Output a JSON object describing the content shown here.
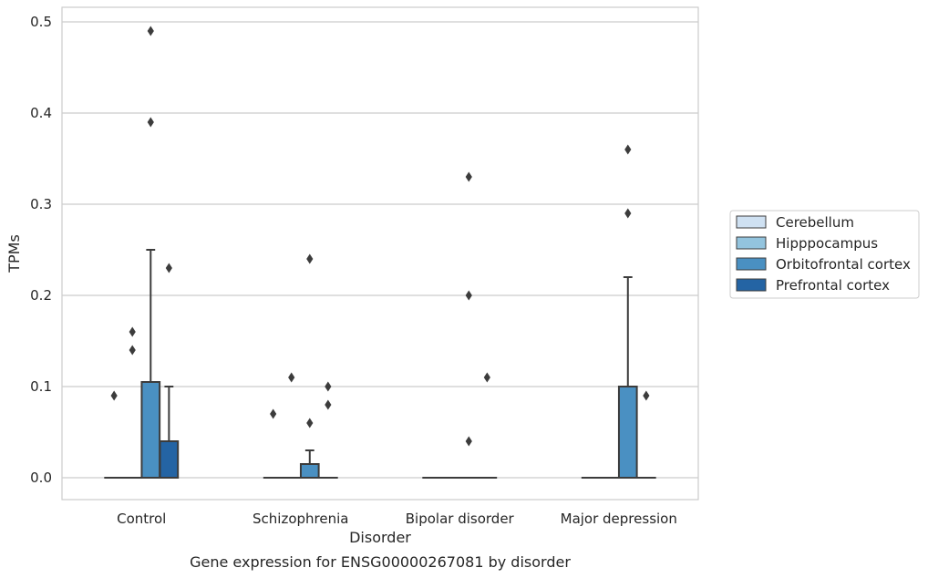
{
  "chart_data": {
    "type": "box",
    "xlabel": "Disorder",
    "ylabel": "TPMs",
    "caption": "Gene expression for ENSG00000267081 by disorder",
    "ylim": [
      -0.024,
      0.516
    ],
    "yticks": [
      0.0,
      0.1,
      0.2,
      0.3,
      0.4,
      0.5
    ],
    "ytick_labels": [
      "0.0",
      "0.1",
      "0.2",
      "0.3",
      "0.4",
      "0.5"
    ],
    "categories": [
      "Control",
      "Schizophrenia",
      "Bipolar disorder",
      "Major depression"
    ],
    "grid": true,
    "legend_position": "right",
    "series": [
      {
        "name": "Cerebellum",
        "color": "#cfe1f2",
        "boxes": [
          {
            "q1": 0,
            "median": 0,
            "q3": 0,
            "whislo": 0,
            "whishi": 0,
            "fliers": [
              0.09
            ]
          },
          {
            "q1": 0,
            "median": 0,
            "q3": 0,
            "whislo": 0,
            "whishi": 0,
            "fliers": [
              0.07
            ]
          },
          {
            "q1": 0,
            "median": 0,
            "q3": 0,
            "whislo": 0,
            "whishi": 0,
            "fliers": []
          },
          {
            "q1": 0,
            "median": 0,
            "q3": 0,
            "whislo": 0,
            "whishi": 0,
            "fliers": []
          }
        ]
      },
      {
        "name": "Hipppocampus",
        "color": "#93c4de",
        "boxes": [
          {
            "q1": 0,
            "median": 0,
            "q3": 0,
            "whislo": 0,
            "whishi": 0,
            "fliers": [
              0.14,
              0.16
            ]
          },
          {
            "q1": 0,
            "median": 0,
            "q3": 0,
            "whislo": 0,
            "whishi": 0,
            "fliers": [
              0.11
            ]
          },
          {
            "q1": 0,
            "median": 0,
            "q3": 0,
            "whislo": 0,
            "whishi": 0,
            "fliers": []
          },
          {
            "q1": 0,
            "median": 0,
            "q3": 0,
            "whislo": 0,
            "whishi": 0,
            "fliers": []
          }
        ]
      },
      {
        "name": "Orbitofrontal cortex",
        "color": "#4a90c2",
        "boxes": [
          {
            "q1": 0,
            "median": 0,
            "q3": 0.105,
            "whislo": 0,
            "whishi": 0.25,
            "fliers": [
              0.39,
              0.49
            ]
          },
          {
            "q1": 0,
            "median": 0,
            "q3": 0.015,
            "whislo": 0,
            "whishi": 0.03,
            "fliers": [
              0.06,
              0.24
            ]
          },
          {
            "q1": 0,
            "median": 0,
            "q3": 0,
            "whislo": 0,
            "whishi": 0,
            "fliers": [
              0.04,
              0.2,
              0.33
            ]
          },
          {
            "q1": 0,
            "median": 0,
            "q3": 0.1,
            "whislo": 0,
            "whishi": 0.22,
            "fliers": [
              0.29,
              0.36
            ]
          }
        ]
      },
      {
        "name": "Prefrontal cortex",
        "color": "#2464a4",
        "boxes": [
          {
            "q1": 0,
            "median": 0,
            "q3": 0.04,
            "whislo": 0,
            "whishi": 0.1,
            "fliers": [
              0.23
            ]
          },
          {
            "q1": 0,
            "median": 0,
            "q3": 0,
            "whislo": 0,
            "whishi": 0,
            "fliers": [
              0.08,
              0.1
            ]
          },
          {
            "q1": 0,
            "median": 0,
            "q3": 0,
            "whislo": 0,
            "whishi": 0,
            "fliers": [
              0.11
            ]
          },
          {
            "q1": 0,
            "median": 0,
            "q3": 0,
            "whislo": 0,
            "whishi": 0,
            "fliers": [
              0.09
            ]
          }
        ]
      }
    ]
  },
  "colors": {
    "grid": "#cccccc",
    "spine": "#cccccc",
    "box_edge": "#3c3c3c"
  }
}
